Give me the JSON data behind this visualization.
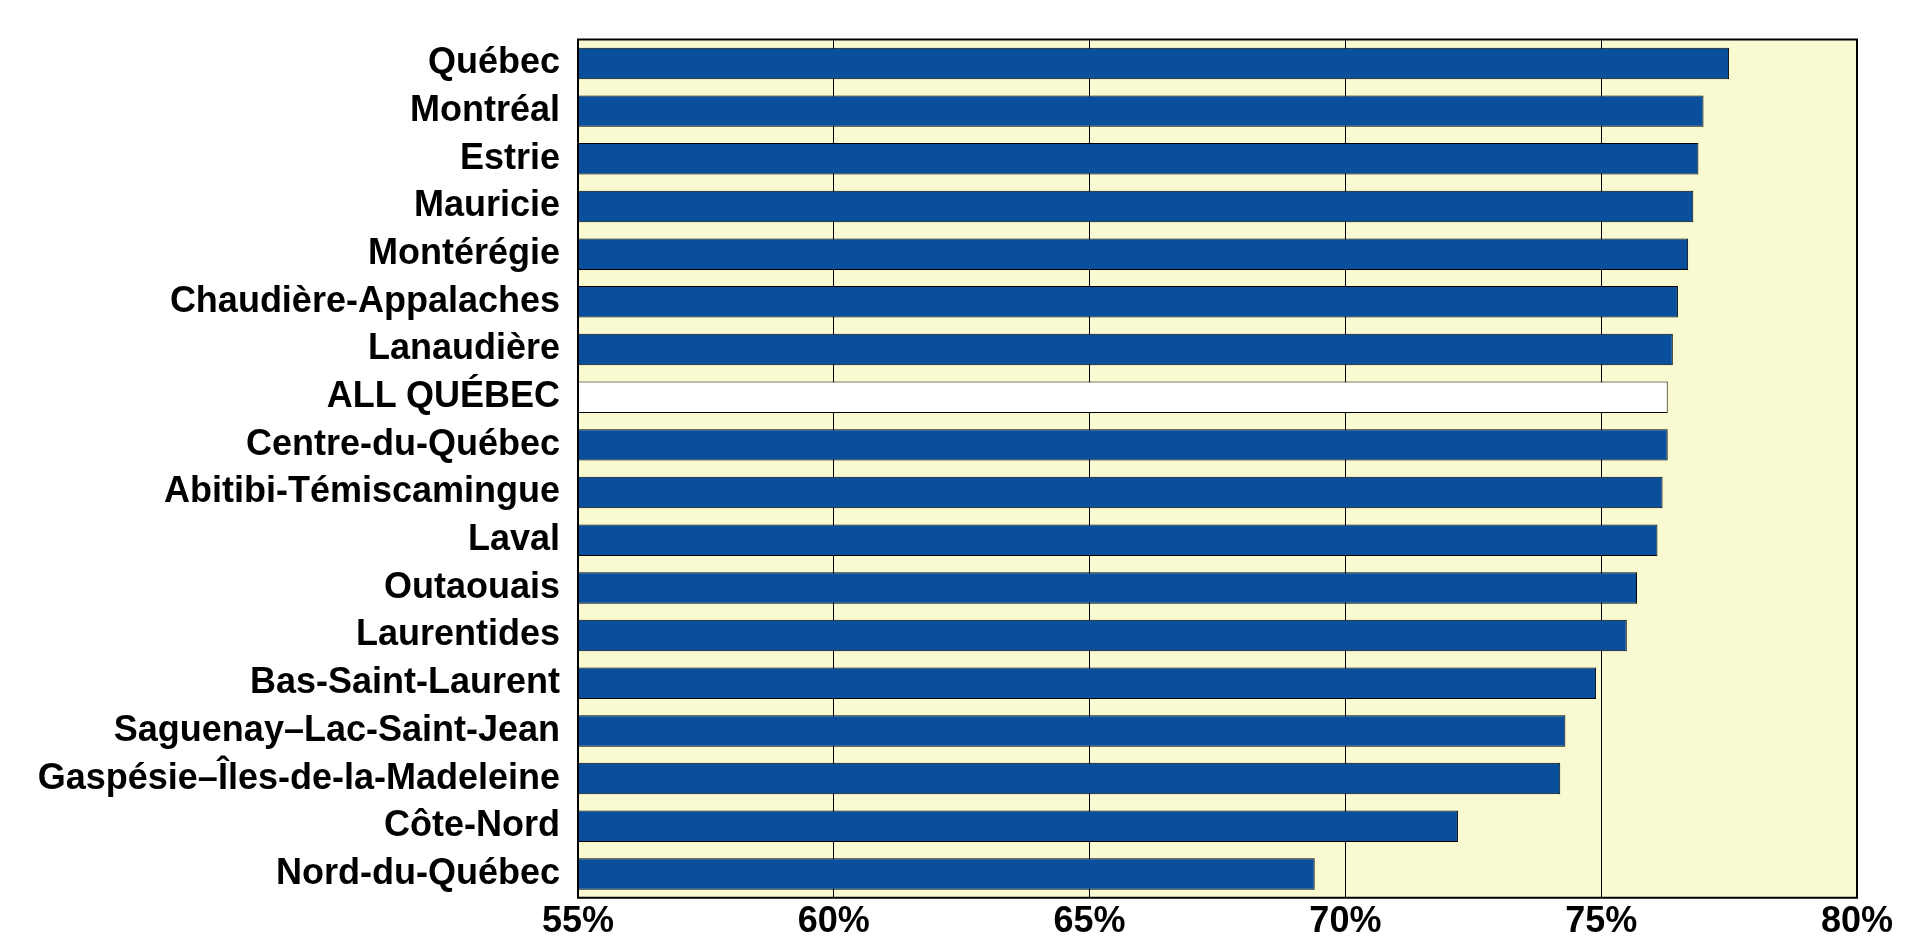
{
  "chart_data": {
    "type": "bar",
    "orientation": "horizontal",
    "categories": [
      "Québec",
      "Montréal",
      "Estrie",
      "Mauricie",
      "Montérégie",
      "Chaudière-Appalaches",
      "Lanaudière",
      "ALL QUÉBEC",
      "Centre-du-Québec",
      "Abitibi-Témiscamingue",
      "Laval",
      "Outaouais",
      "Laurentides",
      "Bas-Saint-Laurent",
      "Saguenay–Lac-Saint-Jean",
      "Gaspésie–Îles-de-la-Madeleine",
      "Côte-Nord",
      "Nord-du-Québec"
    ],
    "values": [
      77.5,
      77.0,
      76.9,
      76.8,
      76.7,
      76.5,
      76.4,
      76.3,
      76.3,
      76.2,
      76.1,
      75.7,
      75.5,
      74.9,
      74.3,
      74.2,
      72.2,
      69.4
    ],
    "colors": [
      "#0a4f9c",
      "#0a4f9c",
      "#0a4f9c",
      "#0a4f9c",
      "#0a4f9c",
      "#0a4f9c",
      "#0a4f9c",
      "#ffffff",
      "#0a4f9c",
      "#0a4f9c",
      "#0a4f9c",
      "#0a4f9c",
      "#0a4f9c",
      "#0a4f9c",
      "#0a4f9c",
      "#0a4f9c",
      "#0a4f9c",
      "#0a4f9c"
    ],
    "xlim": [
      55,
      80
    ],
    "xticks": [
      {
        "value": 55,
        "label": "55%"
      },
      {
        "value": 60,
        "label": "60%"
      },
      {
        "value": 65,
        "label": "65%"
      },
      {
        "value": 70,
        "label": "70%"
      },
      {
        "value": 75,
        "label": "75%"
      },
      {
        "value": 80,
        "label": "80%"
      }
    ],
    "bands": [
      {
        "axis": "x",
        "from": 55,
        "to": 80,
        "color": "#fafad2"
      }
    ],
    "grid": "x",
    "legend": false
  }
}
